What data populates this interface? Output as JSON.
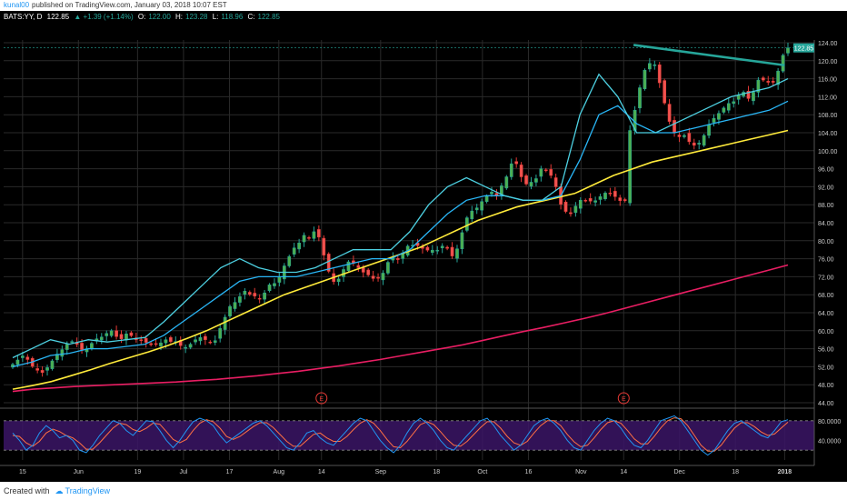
{
  "header": {
    "user": "kunal00",
    "publish_text": "published on TradingView.com, January 03, 2018 10:07 EST"
  },
  "symbol_info": {
    "symbol": "BATS:YY, D",
    "last": "122.85",
    "change": "▲ +1.39 (+1.14%)",
    "open_label": "O:",
    "open": "122.00",
    "high_label": "H:",
    "high": "123.28",
    "low_label": "L:",
    "low": "118.96",
    "close_label": "C:",
    "close": "122.85"
  },
  "colors": {
    "up": "#26a69a",
    "up_fill": "#4caf50",
    "down": "#e53935",
    "down_fill": "#ef5350",
    "ema_fast": "#4dd0e1",
    "ema_slow": "#29b6f6",
    "sma100": "#ffeb3b",
    "sma200": "#e91e63",
    "trendline": "#26a69a",
    "stoch_k": "#2196f3",
    "stoch_d": "#ff7043",
    "stoch_band": "#3b1566",
    "grid": "#2a2a2a",
    "axis_text": "#cccccc"
  },
  "chart_data": {
    "type": "candlestick",
    "title": "BATS:YY, D",
    "ylim": [
      44,
      124
    ],
    "y_ticks": [
      "124.00",
      "120.00",
      "116.00",
      "112.00",
      "108.00",
      "104.00",
      "100.00",
      "96.00",
      "92.00",
      "88.00",
      "84.00",
      "80.00",
      "76.00",
      "72.00",
      "68.00",
      "64.00",
      "60.00",
      "56.00",
      "52.00",
      "48.00",
      "44.00"
    ],
    "price_label": "122.85",
    "x_ticks": [
      {
        "label": "15",
        "date": "2017-05-15"
      },
      {
        "label": "Jun",
        "date": "2017-06-01"
      },
      {
        "label": "19",
        "date": "2017-06-19"
      },
      {
        "label": "Jul",
        "date": "2017-07-03"
      },
      {
        "label": "17",
        "date": "2017-07-17"
      },
      {
        "label": "Aug",
        "date": "2017-08-01"
      },
      {
        "label": "14",
        "date": "2017-08-14"
      },
      {
        "label": "Sep",
        "date": "2017-09-01"
      },
      {
        "label": "18",
        "date": "2017-09-18"
      },
      {
        "label": "Oct",
        "date": "2017-10-02"
      },
      {
        "label": "16",
        "date": "2017-10-16"
      },
      {
        "label": "Nov",
        "date": "2017-11-01"
      },
      {
        "label": "14",
        "date": "2017-11-14"
      },
      {
        "label": "Dec",
        "date": "2017-12-01"
      },
      {
        "label": "18",
        "date": "2017-12-18"
      },
      {
        "label": "2018",
        "date": "2018-01-02"
      }
    ],
    "close_path": {
      "start_date": "2017-05-12",
      "end_date": "2018-01-03",
      "values": [
        52.5,
        53.5,
        54.4,
        53.6,
        52.1,
        51.2,
        50.7,
        51.8,
        53.3,
        54.8,
        55.8,
        57.0,
        57.6,
        57.0,
        55.8,
        56.0,
        57.2,
        58.2,
        58.6,
        59.4,
        60.0,
        58.7,
        58.2,
        59.3,
        58.9,
        58.0,
        57.8,
        57.4,
        56.9,
        57.1,
        57.3,
        58.0,
        57.6,
        57.6,
        56.7,
        56.3,
        57.0,
        58.0,
        58.5,
        58.0,
        57.4,
        57.8,
        60.5,
        63.0,
        65.4,
        66.3,
        67.6,
        68.8,
        68.1,
        67.7,
        67.0,
        68.4,
        70.2,
        70.5,
        72.0,
        74.4,
        76.5,
        78.4,
        79.5,
        81.2,
        80.5,
        82.0,
        80.8,
        76.8,
        73.2,
        70.9,
        71.5,
        73.6,
        75.3,
        75.0,
        74.0,
        73.0,
        72.4,
        71.6,
        71.8,
        72.8,
        75.2,
        76.3,
        75.8,
        77.3,
        78.8,
        79.0,
        78.9,
        78.3,
        77.9,
        77.9,
        77.9,
        78.8,
        78.3,
        76.6,
        78.2,
        81.8,
        85.1,
        86.6,
        87.3,
        88.7,
        89.9,
        90.8,
        90.0,
        92.2,
        94.2,
        97.1,
        97.1,
        94.2,
        92.6,
        93.0,
        93.8,
        96.0,
        95.6,
        94.5,
        92.0,
        88.1,
        86.5,
        86.0,
        87.7,
        89.0,
        88.9,
        88.8,
        88.9,
        89.8,
        90.6,
        90.5,
        89.8,
        88.9,
        88.9,
        104.5,
        109.0,
        114.0,
        117.9,
        119.4,
        119.1,
        115.1,
        110.6,
        106.5,
        104.0,
        103.1,
        103.4,
        102.0,
        101.2,
        101.7,
        103.4,
        105.8,
        107.2,
        108.3,
        109.5,
        110.5,
        110.9,
        112.4,
        113.0,
        111.6,
        113.0,
        115.7,
        115.7,
        115.2,
        115.2,
        117.7,
        121.2,
        122.85
      ]
    },
    "ema_fast_path": [
      54,
      56,
      58,
      57,
      58,
      57.5,
      58,
      58.5,
      62,
      66,
      70,
      74,
      76,
      74,
      73,
      73,
      74,
      76,
      78,
      78,
      78,
      82,
      88,
      92,
      94,
      92,
      90,
      89,
      89,
      92,
      108,
      117,
      112,
      104,
      104,
      106,
      108,
      110,
      112,
      113,
      114,
      116
    ],
    "ema_slow_path": [
      52,
      53,
      54.5,
      55,
      56,
      56,
      56.5,
      57,
      59,
      62,
      65,
      68,
      71,
      72,
      72,
      72,
      73,
      74,
      75,
      76,
      76,
      78,
      82,
      86,
      89,
      90,
      90,
      89,
      89,
      90,
      98,
      108,
      110,
      106,
      104,
      104,
      105,
      106,
      107,
      108,
      109,
      111
    ],
    "sma100_path": [
      47,
      47.8,
      48.7,
      50,
      51.3,
      52.7,
      54,
      55.3,
      56.7,
      58.3,
      60,
      62,
      64,
      66,
      68,
      69.5,
      71,
      72.5,
      74,
      75.5,
      77,
      78.5,
      80.5,
      82.5,
      84.5,
      86,
      87.5,
      88.5,
      89.5,
      90.5,
      92.5,
      94.5,
      96,
      97.5,
      98.5,
      99.5,
      100.5,
      101.5,
      102.5,
      103.5,
      104.5
    ],
    "sma200_path": [
      46.5,
      47,
      47.3,
      47.6,
      47.8,
      48,
      48.2,
      48.4,
      48.6,
      48.9,
      49.2,
      49.6,
      50,
      50.5,
      51,
      51.6,
      52.2,
      52.9,
      53.6,
      54.4,
      55.2,
      56,
      56.8,
      57.8,
      58.8,
      59.8,
      60.7,
      61.7,
      62.7,
      63.8,
      65,
      66.2,
      67.4,
      68.6,
      69.8,
      71,
      72.2,
      73.4,
      74.6
    ],
    "trendline": {
      "start_date": "2017-11-17",
      "start_price": 123.5,
      "end_date": "2018-01-02",
      "end_price": 119.0
    },
    "earnings_markers": [
      {
        "date": "2017-08-14",
        "label": "E"
      },
      {
        "date": "2017-11-14",
        "label": "E"
      }
    ],
    "stochastic": {
      "k": [
        55,
        40,
        20,
        30,
        55,
        70,
        60,
        45,
        50,
        40,
        20,
        15,
        30,
        50,
        65,
        80,
        75,
        60,
        50,
        65,
        80,
        78,
        60,
        40,
        25,
        40,
        60,
        78,
        85,
        80,
        70,
        50,
        35,
        45,
        55,
        65,
        75,
        80,
        70,
        55,
        40,
        25,
        20,
        35,
        55,
        60,
        45,
        35,
        30,
        45,
        60,
        75,
        85,
        80,
        60,
        40,
        25,
        15,
        30,
        55,
        75,
        85,
        75,
        60,
        40,
        25,
        20,
        35,
        50,
        65,
        80,
        85,
        70,
        50,
        35,
        20,
        30,
        50,
        70,
        80,
        85,
        75,
        60,
        40,
        25,
        20,
        40,
        60,
        75,
        85,
        80,
        65,
        45,
        30,
        25,
        40,
        60,
        80,
        85,
        90,
        80,
        60,
        40,
        20,
        10,
        20,
        40,
        60,
        75,
        80,
        70,
        60,
        50,
        45,
        60,
        78,
        82
      ],
      "d": [
        50,
        48,
        35,
        28,
        38,
        55,
        63,
        58,
        50,
        45,
        35,
        22,
        22,
        35,
        50,
        65,
        75,
        72,
        62,
        58,
        65,
        75,
        73,
        58,
        42,
        35,
        42,
        60,
        75,
        82,
        78,
        65,
        48,
        42,
        48,
        58,
        68,
        76,
        76,
        66,
        52,
        38,
        28,
        28,
        40,
        52,
        55,
        45,
        38,
        38,
        48,
        62,
        75,
        82,
        75,
        60,
        42,
        27,
        25,
        38,
        55,
        72,
        78,
        72,
        58,
        42,
        30,
        28,
        38,
        52,
        66,
        78,
        78,
        65,
        48,
        35,
        30,
        38,
        55,
        70,
        80,
        80,
        70,
        52,
        37,
        27,
        30,
        45,
        62,
        76,
        80,
        75,
        60,
        43,
        33,
        33,
        48,
        66,
        80,
        86,
        84,
        70,
        50,
        30,
        18,
        18,
        30,
        48,
        65,
        76,
        76,
        68,
        57,
        50,
        53,
        65,
        77
      ]
    },
    "stoch_ticks": [
      "80.0000",
      "40.0000"
    ],
    "stoch_ylim": [
      0,
      100
    ],
    "stoch_band": [
      20,
      80
    ]
  },
  "footer": {
    "created_with": "Created with",
    "brand": "TradingView"
  }
}
